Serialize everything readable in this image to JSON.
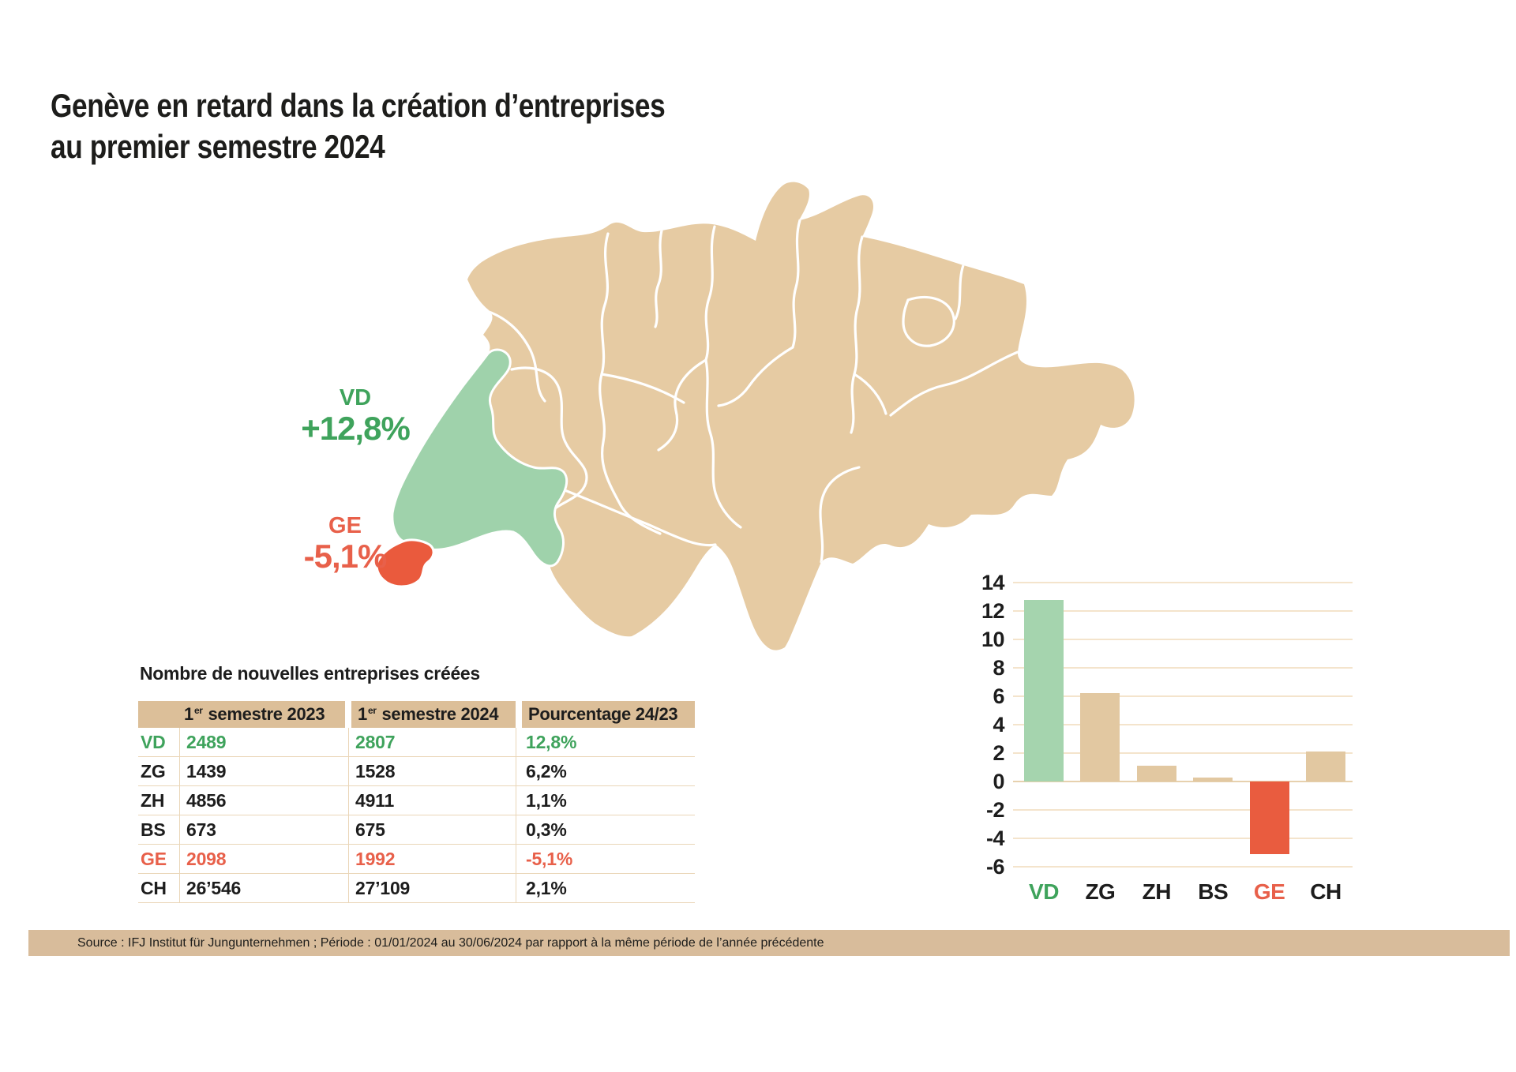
{
  "title": {
    "line1": "Genève en retard dans la création d’entreprises",
    "line2": "au premier semestre 2024"
  },
  "map": {
    "vd_label": "VD",
    "vd_value": "+12,8%",
    "ge_label": "GE",
    "ge_value": "-5,1%",
    "colors": {
      "canton_fill": "#e6cba3",
      "vd_fill": "#9fd2ab",
      "ge_fill": "#ea5a3d",
      "border": "#ffffff"
    }
  },
  "table": {
    "title": "Nombre de nouvelles entreprises créées",
    "headers": [
      {
        "num": "1",
        "sup": "er",
        "rest": " semestre 2023"
      },
      {
        "num": "1",
        "sup": "er",
        "rest": " semestre 2024"
      },
      {
        "label": "Pourcentage 24/23"
      }
    ],
    "rows": [
      {
        "code": "VD",
        "v2023": "2489",
        "v2024": "2807",
        "pct": "12,8%"
      },
      {
        "code": "ZG",
        "v2023": "1439",
        "v2024": "1528",
        "pct": "6,2%"
      },
      {
        "code": "ZH",
        "v2023": "4856",
        "v2024": "4911",
        "pct": "1,1%"
      },
      {
        "code": "BS",
        "v2023": "673",
        "v2024": "675",
        "pct": "0,3%"
      },
      {
        "code": "GE",
        "v2023": "2098",
        "v2024": "1992",
        "pct": "-5,1%"
      },
      {
        "code": "CH",
        "v2023": "26’546",
        "v2024": "27’109",
        "pct": "2,1%"
      }
    ]
  },
  "chart_data": {
    "type": "bar",
    "categories": [
      "VD",
      "ZG",
      "ZH",
      "BS",
      "GE",
      "CH"
    ],
    "values": [
      12.8,
      6.2,
      1.1,
      0.3,
      -5.1,
      2.1
    ],
    "bar_colors": [
      "#a5d4ae",
      "#e2c8a1",
      "#e2c8a1",
      "#e2c8a1",
      "#e95c3f",
      "#e2c8a1"
    ],
    "label_colors": [
      "#3fa35c",
      "#1d1d1d",
      "#1d1d1d",
      "#1d1d1d",
      "#e8604a",
      "#1d1d1d"
    ],
    "title": "",
    "xlabel": "",
    "ylabel": "",
    "ylim": [
      -6,
      14
    ],
    "ytick_step": 2,
    "grid": true,
    "legend": "none"
  },
  "source": {
    "text": "Source : IFJ Institut für Jungunternehmen ; Période : 01/01/2024 au 30/06/2024 par rapport à la même période de l’année précédente"
  }
}
